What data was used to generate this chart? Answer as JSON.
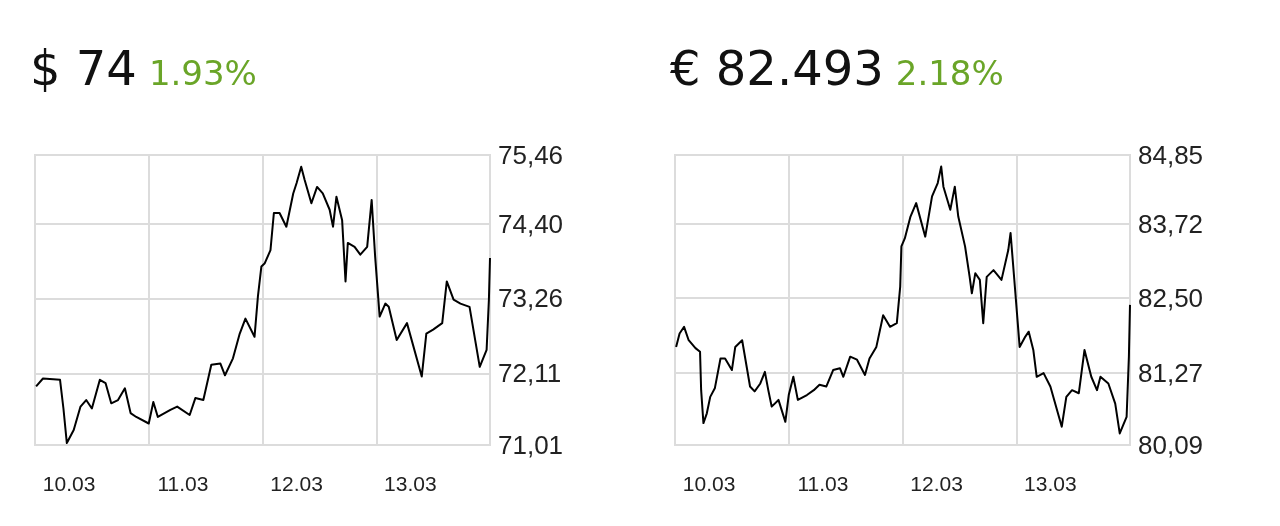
{
  "chart_data": [
    {
      "type": "line",
      "title": "$ 74",
      "subtitle": "1.93%",
      "x": [
        "--03-10T00:14",
        "--03-10T01:41",
        "--03-10T05:17",
        "--03-10T06:00",
        "--03-10T06:43",
        "--03-10T08:10",
        "--03-10T09:36",
        "--03-10T10:48",
        "--03-10T12:00",
        "--03-10T13:41",
        "--03-10T14:53",
        "--03-10T16:05",
        "--03-10T17:31",
        "--03-10T18:58",
        "--03-10T20:10",
        "--03-10T21:22",
        "--03-11T00:00",
        "--03-11T00:58",
        "--03-11T01:55",
        "--03-11T04:34",
        "--03-11T06:00",
        "--03-11T08:38",
        "--03-11T09:50",
        "--03-11T11:31",
        "--03-11T13:12",
        "--03-11T15:07",
        "--03-11T16:05",
        "--03-11T17:46",
        "--03-11T19:12",
        "--03-11T20:24",
        "--03-11T22:19",
        "--03-11T23:02",
        "--03-11T23:46",
        "--03-12T00:29",
        "--03-12T01:41",
        "--03-12T02:24",
        "--03-12T03:36",
        "--03-12T05:02",
        "--03-12T06:29",
        "--03-12T07:12",
        "--03-12T08:10",
        "--03-12T08:53",
        "--03-12T10:19",
        "--03-12T11:31",
        "--03-12T12:43",
        "--03-12T14:10",
        "--03-12T14:53",
        "--03-12T15:36",
        "--03-12T16:48",
        "--03-12T17:31",
        "--03-12T18:00",
        "--03-12T19:26",
        "--03-12T20:38",
        "--03-12T22:05",
        "--03-12T23:02",
        "--03-12T23:46",
        "--03-13T00:43",
        "--03-13T01:55",
        "--03-13T02:38",
        "--03-13T04:19",
        "--03-13T06:29",
        "--03-13T09:36",
        "--03-13T10:34",
        "--03-13T12:00",
        "--03-13T13:55",
        "--03-13T14:53",
        "--03-13T16:19",
        "--03-13T17:46",
        "--03-13T19:41",
        "--03-13T21:50",
        "--03-13T23:17",
        "--03-13T23:46",
        "--03-14T00:00"
      ],
      "series": [
        {
          "color": "#000000",
          "values": [
            71.91,
            72.03,
            72.01,
            71.57,
            71.04,
            71.24,
            71.6,
            71.7,
            71.57,
            72.01,
            71.96,
            71.65,
            71.7,
            71.88,
            71.5,
            71.44,
            71.34,
            71.67,
            71.44,
            71.55,
            71.6,
            71.47,
            71.73,
            71.7,
            72.24,
            72.26,
            72.08,
            72.34,
            72.72,
            72.95,
            72.67,
            73.29,
            73.75,
            73.8,
            74.0,
            74.57,
            74.57,
            74.36,
            74.87,
            75.03,
            75.28,
            75.08,
            74.72,
            74.97,
            74.87,
            74.62,
            74.36,
            74.82,
            74.46,
            73.52,
            74.11,
            74.05,
            73.93,
            74.05,
            74.77,
            73.9,
            72.98,
            73.18,
            73.13,
            72.62,
            72.88,
            72.06,
            72.72,
            72.78,
            72.88,
            73.52,
            73.24,
            73.18,
            73.13,
            72.21,
            72.47,
            73.24,
            73.88
          ]
        }
      ],
      "xlim": [
        "--03-10",
        "--03-14"
      ],
      "xticks": [
        {
          "value": "--03-10T07:12",
          "label": "10.03"
        },
        {
          "value": "--03-11",
          "label": null
        },
        {
          "value": "--03-11T07:12",
          "label": "11.03"
        },
        {
          "value": "--03-12",
          "label": null
        },
        {
          "value": "--03-12T07:12",
          "label": "12.03"
        },
        {
          "value": "--03-13",
          "label": null
        },
        {
          "value": "--03-13T07:12",
          "label": "13.03"
        }
      ],
      "ylim": [
        71.01,
        75.46
      ],
      "yticks": [
        {
          "value": 71.01,
          "label": "71,01"
        },
        {
          "value": 72.11,
          "label": "72,11"
        },
        {
          "value": 73.26,
          "label": "73,26"
        },
        {
          "value": 74.4,
          "label": "74,40"
        },
        {
          "value": 75.46,
          "label": "75,46"
        }
      ],
      "grid": true
    },
    {
      "type": "line",
      "title": "€ 82.493",
      "subtitle": "2.18%",
      "x": [
        "--03-10T00:14",
        "--03-10T00:58",
        "--03-10T01:55",
        "--03-10T02:53",
        "--03-10T04:19",
        "--03-10T05:17",
        "--03-10T05:31",
        "--03-10T06:00",
        "--03-10T06:43",
        "--03-10T07:26",
        "--03-10T08:24",
        "--03-10T09:36",
        "--03-10T10:34",
        "--03-10T12:00",
        "--03-10T12:43",
        "--03-10T14:10",
        "--03-10T15:50",
        "--03-10T16:48",
        "--03-10T18:00",
        "--03-10T18:58",
        "--03-10T19:41",
        "--03-10T20:24",
        "--03-10T21:50",
        "--03-10T23:17",
        "--03-11T00:00",
        "--03-11T00:58",
        "--03-11T01:55",
        "--03-11T03:50",
        "--03-11T05:17",
        "--03-11T06:29",
        "--03-11T07:55",
        "--03-11T09:22",
        "--03-11T10:48",
        "--03-11T11:31",
        "--03-11T12:58",
        "--03-11T14:24",
        "--03-11T16:05",
        "--03-11T17:02",
        "--03-11T18:29",
        "--03-11T19:55",
        "--03-11T21:22",
        "--03-11T22:48",
        "--03-11T23:31",
        "--03-11T23:46",
        "--03-12T00:29",
        "--03-12T01:41",
        "--03-12T02:53",
        "--03-12T04:48",
        "--03-12T06:14",
        "--03-12T07:26",
        "--03-12T08:10",
        "--03-12T08:38",
        "--03-12T10:05",
        "--03-12T11:02",
        "--03-12T11:46",
        "--03-12T13:12",
        "--03-12T14:10",
        "--03-12T14:38",
        "--03-12T15:22",
        "--03-12T16:19",
        "--03-12T17:02",
        "--03-12T17:46",
        "--03-12T19:12",
        "--03-12T20:53",
        "--03-12T22:19",
        "--03-12T22:48",
        "--03-12T23:46",
        "--03-13T00:43",
        "--03-13T01:55",
        "--03-13T02:38",
        "--03-13T03:36",
        "--03-13T04:19",
        "--03-13T05:46",
        "--03-13T07:12",
        "--03-13T09:36",
        "--03-13T10:34",
        "--03-13T11:46",
        "--03-13T13:12",
        "--03-13T14:24",
        "--03-13T15:50",
        "--03-13T17:02",
        "--03-13T17:46",
        "--03-13T19:26",
        "--03-13T20:53",
        "--03-13T21:50",
        "--03-13T23:17",
        "--03-13T23:46",
        "--03-14T00:00"
      ],
      "series": [
        {
          "color": "#000000",
          "values": [
            81.7,
            81.92,
            82.03,
            81.81,
            81.68,
            81.62,
            80.99,
            80.45,
            80.61,
            80.88,
            81.02,
            81.51,
            81.51,
            81.32,
            81.7,
            81.81,
            81.05,
            80.97,
            81.1,
            81.29,
            80.99,
            80.72,
            80.83,
            80.47,
            80.91,
            81.21,
            80.83,
            80.91,
            80.99,
            81.08,
            81.05,
            81.32,
            81.35,
            81.21,
            81.54,
            81.49,
            81.24,
            81.51,
            81.7,
            82.22,
            82.03,
            82.09,
            82.69,
            83.35,
            83.48,
            83.84,
            84.06,
            83.51,
            84.17,
            84.39,
            84.66,
            84.33,
            83.95,
            84.33,
            83.84,
            83.35,
            82.85,
            82.58,
            82.91,
            82.8,
            82.09,
            82.85,
            82.96,
            82.8,
            83.29,
            83.57,
            82.63,
            81.7,
            81.87,
            81.95,
            81.65,
            81.21,
            81.27,
            81.05,
            80.39,
            80.88,
            80.99,
            80.94,
            81.65,
            81.21,
            80.99,
            81.21,
            81.1,
            80.77,
            80.28,
            80.55,
            81.54,
            82.39
          ]
        }
      ],
      "xlim": [
        "--03-10",
        "--03-14"
      ],
      "xticks": [
        {
          "value": "--03-10T07:12",
          "label": "10.03"
        },
        {
          "value": "--03-11",
          "label": null
        },
        {
          "value": "--03-11T07:12",
          "label": "11.03"
        },
        {
          "value": "--03-12",
          "label": null
        },
        {
          "value": "--03-12T07:12",
          "label": "12.03"
        },
        {
          "value": "--03-13",
          "label": null
        },
        {
          "value": "--03-13T07:12",
          "label": "13.03"
        }
      ],
      "ylim": [
        80.09,
        84.85
      ],
      "yticks": [
        {
          "value": 80.09,
          "label": "80,09"
        },
        {
          "value": 81.27,
          "label": "81,27"
        },
        {
          "value": 82.5,
          "label": "82,50"
        },
        {
          "value": 83.72,
          "label": "83,72"
        },
        {
          "value": 84.85,
          "label": "84,85"
        }
      ],
      "grid": true
    }
  ]
}
